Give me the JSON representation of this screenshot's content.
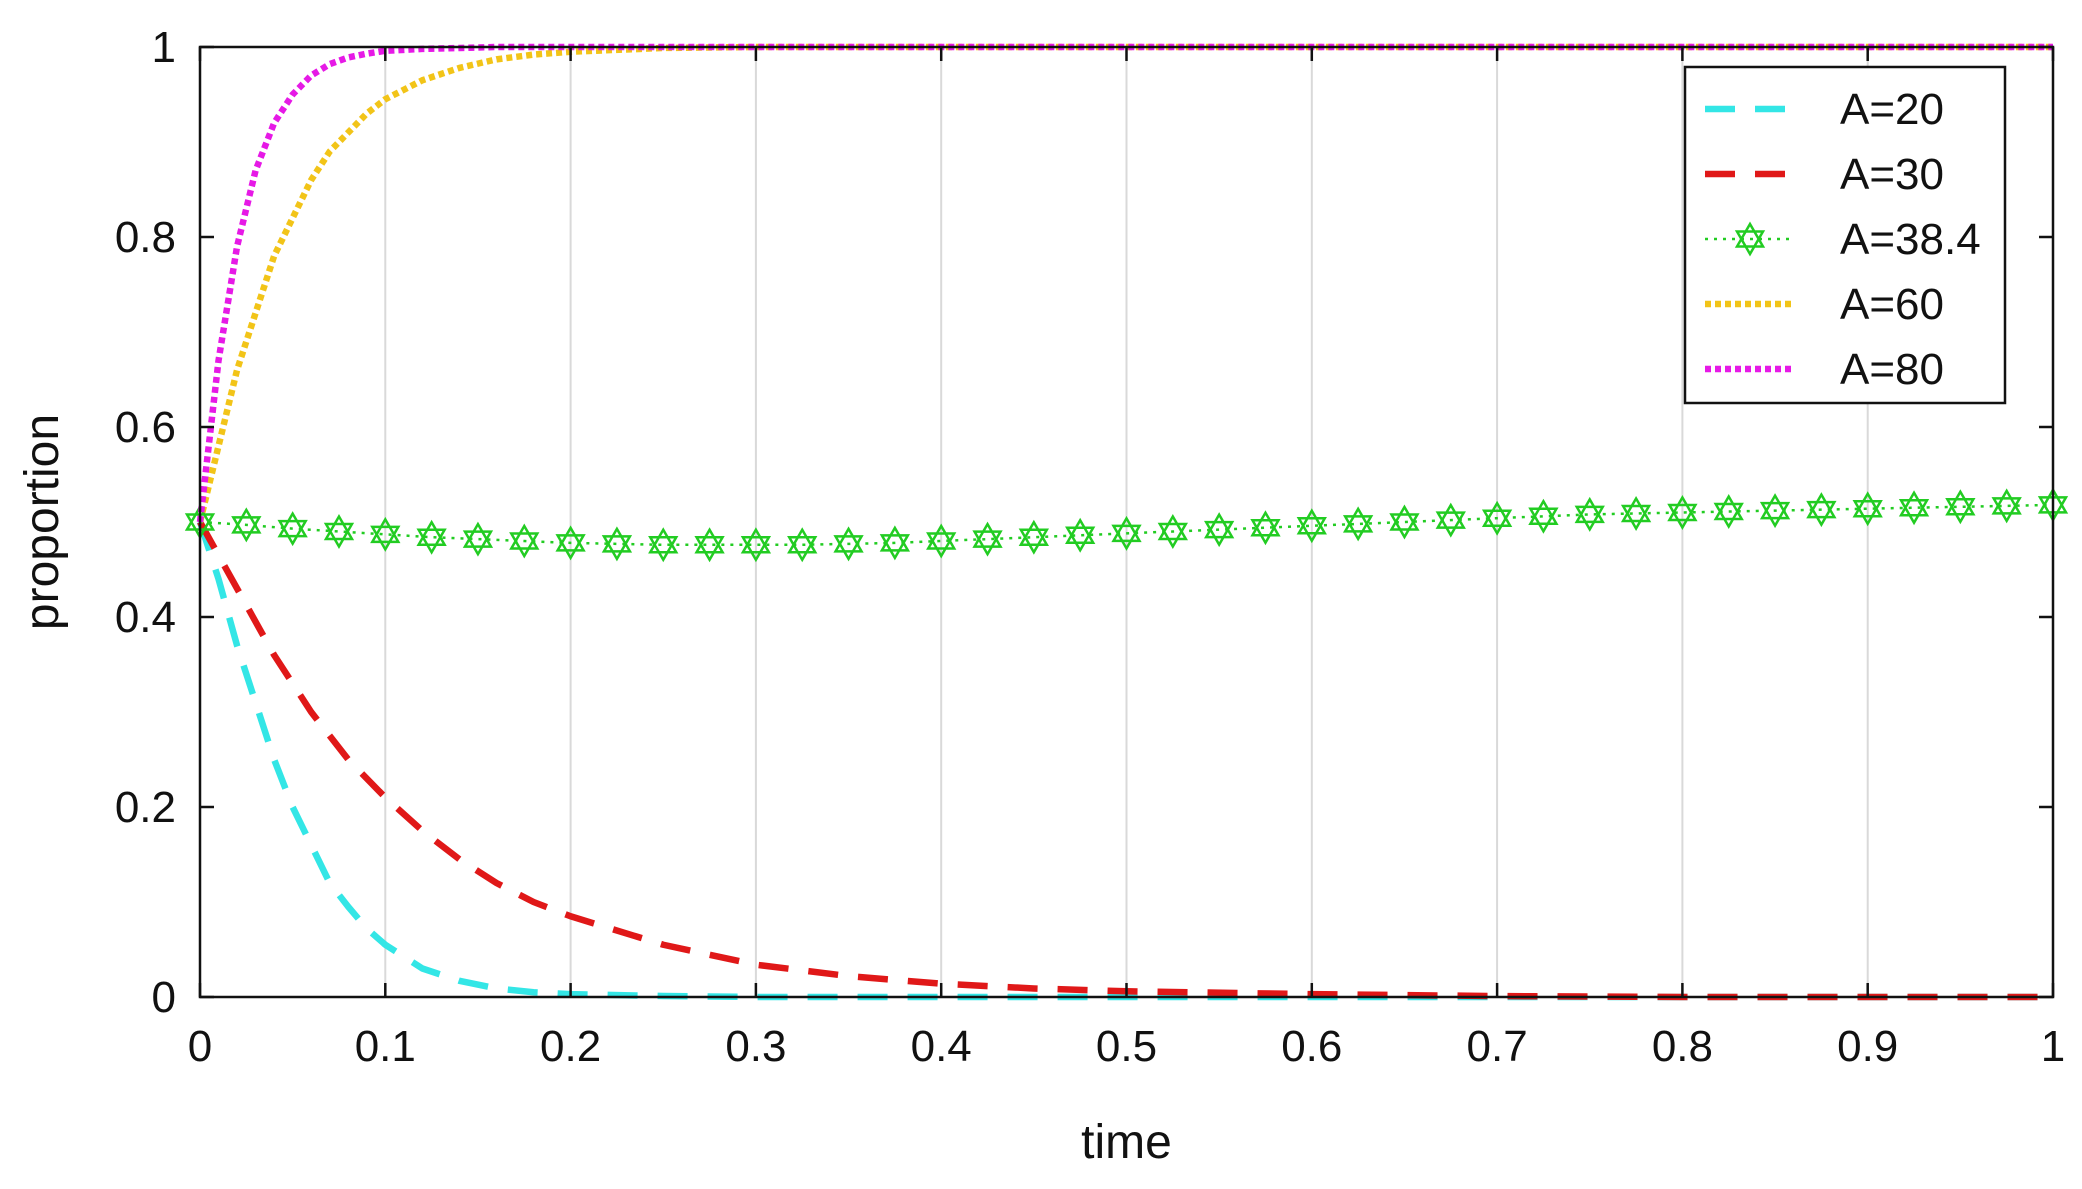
{
  "chart_data": {
    "type": "line",
    "title": "",
    "xlabel": "time",
    "ylabel": "proportion",
    "xlim": [
      0,
      1
    ],
    "ylim": [
      0,
      1
    ],
    "xticks": [
      0,
      0.1,
      0.2,
      0.3,
      0.4,
      0.5,
      0.6,
      0.7,
      0.8,
      0.9,
      1
    ],
    "xtick_labels": [
      "0",
      "0.1",
      "0.2",
      "0.3",
      "0.4",
      "0.5",
      "0.6",
      "0.7",
      "0.8",
      "0.9",
      "1"
    ],
    "yticks": [
      0,
      0.2,
      0.4,
      0.6,
      0.8,
      1
    ],
    "ytick_labels": [
      "0",
      "0.2",
      "0.4",
      "0.6",
      "0.8",
      "1"
    ],
    "grid": "vertical",
    "legend_position": "top-right",
    "series": [
      {
        "name": "A=20",
        "color": "#33e6e6",
        "style": "dashed",
        "x": [
          0,
          0.01,
          0.02,
          0.03,
          0.04,
          0.05,
          0.06,
          0.07,
          0.08,
          0.09,
          0.1,
          0.12,
          0.14,
          0.16,
          0.18,
          0.2,
          0.25,
          0.3,
          0.4,
          0.5,
          0.6,
          0.7,
          0.8,
          0.9,
          1
        ],
        "y": [
          0.5,
          0.44,
          0.37,
          0.31,
          0.25,
          0.2,
          0.16,
          0.12,
          0.095,
          0.072,
          0.055,
          0.03,
          0.017,
          0.009,
          0.005,
          0.003,
          0.001,
          0.0,
          0.0,
          0.0,
          0.0,
          0.0,
          0.0,
          0.0,
          0.0
        ]
      },
      {
        "name": "A=30",
        "color": "#e01818",
        "style": "dashed",
        "x": [
          0,
          0.02,
          0.04,
          0.06,
          0.08,
          0.1,
          0.12,
          0.14,
          0.16,
          0.18,
          0.2,
          0.25,
          0.3,
          0.35,
          0.4,
          0.45,
          0.5,
          0.6,
          0.7,
          0.8,
          0.9,
          1
        ],
        "y": [
          0.5,
          0.43,
          0.36,
          0.3,
          0.25,
          0.21,
          0.175,
          0.145,
          0.12,
          0.1,
          0.085,
          0.055,
          0.034,
          0.022,
          0.014,
          0.009,
          0.006,
          0.003,
          0.001,
          0.0,
          0.0,
          0.0
        ]
      },
      {
        "name": "A=38.4",
        "color": "#22cc22",
        "style": "dotted-hexagram-markers",
        "x": [
          0,
          0.025,
          0.05,
          0.075,
          0.1,
          0.125,
          0.15,
          0.175,
          0.2,
          0.225,
          0.25,
          0.275,
          0.3,
          0.325,
          0.35,
          0.375,
          0.4,
          0.425,
          0.45,
          0.475,
          0.5,
          0.525,
          0.55,
          0.575,
          0.6,
          0.625,
          0.65,
          0.675,
          0.7,
          0.725,
          0.75,
          0.775,
          0.8,
          0.825,
          0.85,
          0.875,
          0.9,
          0.925,
          0.95,
          0.975,
          1
        ],
        "y": [
          0.5,
          0.497,
          0.493,
          0.49,
          0.487,
          0.484,
          0.482,
          0.48,
          0.478,
          0.477,
          0.476,
          0.476,
          0.476,
          0.476,
          0.477,
          0.478,
          0.48,
          0.482,
          0.484,
          0.486,
          0.488,
          0.49,
          0.492,
          0.494,
          0.496,
          0.498,
          0.5,
          0.502,
          0.504,
          0.506,
          0.508,
          0.509,
          0.51,
          0.511,
          0.512,
          0.513,
          0.514,
          0.515,
          0.516,
          0.517,
          0.518
        ]
      },
      {
        "name": "A=60",
        "color": "#f2c418",
        "style": "dotted",
        "x": [
          0,
          0.01,
          0.02,
          0.03,
          0.04,
          0.05,
          0.06,
          0.07,
          0.08,
          0.09,
          0.1,
          0.12,
          0.14,
          0.16,
          0.18,
          0.2,
          0.25,
          0.3,
          0.4,
          0.5,
          0.6,
          0.7,
          0.8,
          0.9,
          1
        ],
        "y": [
          0.5,
          0.58,
          0.66,
          0.72,
          0.78,
          0.82,
          0.86,
          0.89,
          0.91,
          0.93,
          0.945,
          0.965,
          0.978,
          0.987,
          0.992,
          0.995,
          0.999,
          1.0,
          1.0,
          1.0,
          1.0,
          1.0,
          1.0,
          1.0,
          1.0
        ]
      },
      {
        "name": "A=80",
        "color": "#e619e6",
        "style": "dotted",
        "x": [
          0,
          0.01,
          0.02,
          0.03,
          0.04,
          0.05,
          0.06,
          0.07,
          0.08,
          0.09,
          0.1,
          0.12,
          0.14,
          0.16,
          0.2,
          0.3,
          0.4,
          0.5,
          0.6,
          0.7,
          0.8,
          0.9,
          1
        ],
        "y": [
          0.5,
          0.67,
          0.79,
          0.87,
          0.92,
          0.95,
          0.97,
          0.982,
          0.989,
          0.993,
          0.996,
          0.998,
          0.999,
          1.0,
          1.0,
          1.0,
          1.0,
          1.0,
          1.0,
          1.0,
          1.0,
          1.0,
          1.0
        ]
      }
    ]
  }
}
